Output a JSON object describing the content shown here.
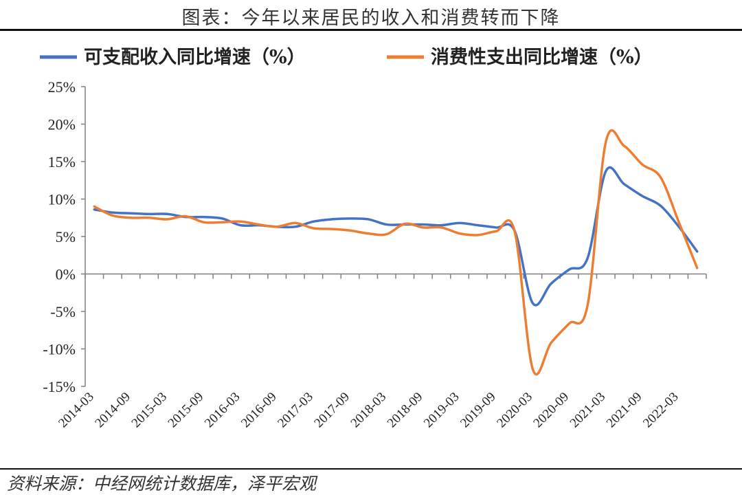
{
  "title": "图表：今年以来居民的收入和消费转而下降",
  "source": "资料来源：中经网统计数据库，泽平宏观",
  "colors": {
    "income": "#4472C4",
    "consumption": "#ED7D31",
    "axis": "#7f7f7f"
  },
  "chart_data": {
    "type": "line",
    "title": "",
    "xlabel": "",
    "ylabel": "",
    "ylim": [
      -15,
      25
    ],
    "yticks": [
      25,
      20,
      15,
      10,
      5,
      0,
      -5,
      -10,
      -15
    ],
    "ytick_labels": [
      "25%",
      "20%",
      "15%",
      "10%",
      "5%",
      "0%",
      "-5%",
      "-10%",
      "-15%"
    ],
    "x": [
      "2014-03",
      "2014-06",
      "2014-09",
      "2014-12",
      "2015-03",
      "2015-06",
      "2015-09",
      "2015-12",
      "2016-03",
      "2016-06",
      "2016-09",
      "2016-12",
      "2017-03",
      "2017-06",
      "2017-09",
      "2017-12",
      "2018-03",
      "2018-06",
      "2018-09",
      "2018-12",
      "2019-03",
      "2019-06",
      "2019-09",
      "2019-12",
      "2020-03",
      "2020-06",
      "2020-09",
      "2020-12",
      "2021-03",
      "2021-06",
      "2021-09",
      "2021-12",
      "2022-03",
      "2022-06"
    ],
    "xtick_labels": [
      "2014-03",
      "2014-09",
      "2015-03",
      "2015-09",
      "2016-03",
      "2016-09",
      "2017-03",
      "2017-09",
      "2018-03",
      "2018-09",
      "2019-03",
      "2019-09",
      "2020-03",
      "2020-09",
      "2021-03",
      "2021-09",
      "2022-03"
    ],
    "grid": false,
    "legend_position": "top",
    "series": [
      {
        "name": "可支配收入同比增速（%）",
        "color_key": "income",
        "values": [
          8.6,
          8.2,
          8.1,
          8.0,
          8.0,
          7.6,
          7.6,
          7.4,
          6.5,
          6.5,
          6.3,
          6.3,
          7.0,
          7.3,
          7.4,
          7.3,
          6.6,
          6.6,
          6.6,
          6.5,
          6.8,
          6.5,
          6.2,
          5.8,
          -3.9,
          -1.3,
          0.6,
          2.1,
          13.7,
          12.0,
          10.4,
          9.1,
          6.3,
          3.0
        ]
      },
      {
        "name": "消费性支出同比增速（%）",
        "color_key": "consumption",
        "values": [
          9.0,
          7.8,
          7.5,
          7.5,
          7.3,
          7.7,
          6.9,
          6.9,
          7.0,
          6.6,
          6.3,
          6.8,
          6.1,
          6.0,
          5.8,
          5.4,
          5.3,
          6.7,
          6.2,
          6.2,
          5.4,
          5.2,
          5.7,
          5.8,
          -12.7,
          -9.2,
          -6.6,
          -4.2,
          17.6,
          17.1,
          14.6,
          12.9,
          6.9,
          0.8
        ]
      }
    ]
  }
}
